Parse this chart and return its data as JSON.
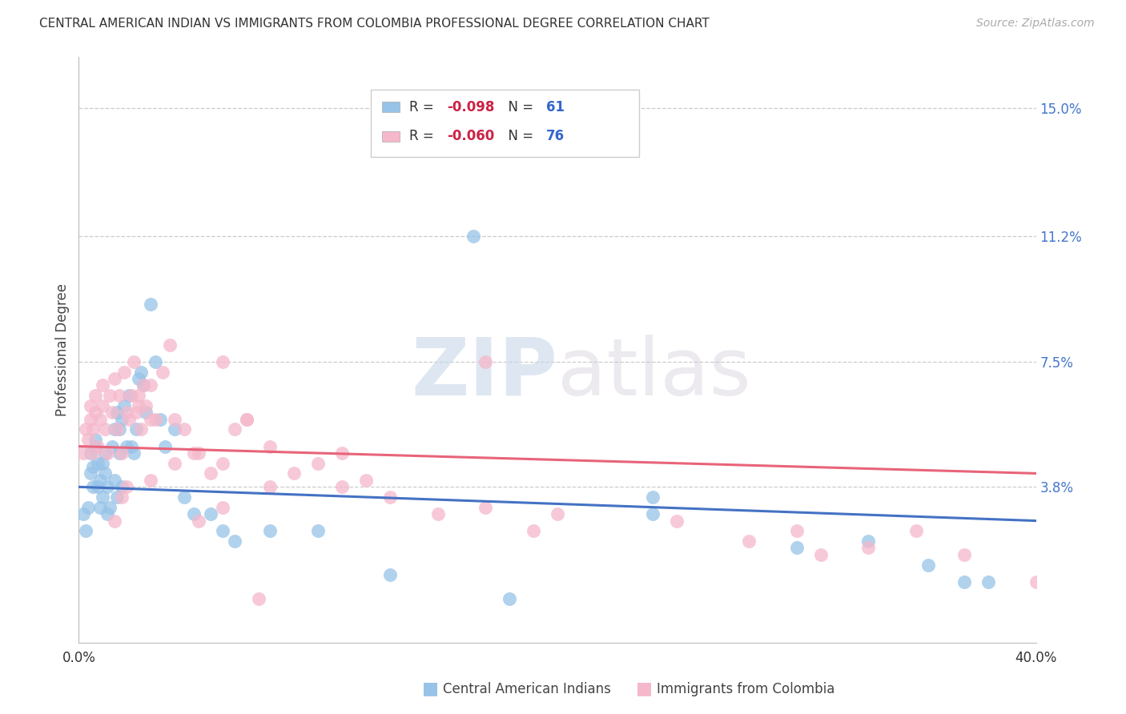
{
  "title": "CENTRAL AMERICAN INDIAN VS IMMIGRANTS FROM COLOMBIA PROFESSIONAL DEGREE CORRELATION CHART",
  "source": "Source: ZipAtlas.com",
  "ylabel": "Professional Degree",
  "right_yticks": [
    "15.0%",
    "11.2%",
    "7.5%",
    "3.8%"
  ],
  "right_ytick_vals": [
    0.15,
    0.112,
    0.075,
    0.038
  ],
  "legend_blue_r": "-0.098",
  "legend_blue_n": "61",
  "legend_pink_r": "-0.060",
  "legend_pink_n": "76",
  "watermark_zip": "ZIP",
  "watermark_atlas": "atlas",
  "blue_color": "#97c3e8",
  "pink_color": "#f5b8cb",
  "blue_line_color": "#4472c4",
  "pink_line_color": "#e8647a",
  "xmin": 0.0,
  "xmax": 0.4,
  "ymin": -0.008,
  "ymax": 0.165,
  "blue_scatter_x": [
    0.002,
    0.003,
    0.004,
    0.005,
    0.005,
    0.006,
    0.006,
    0.007,
    0.007,
    0.008,
    0.008,
    0.009,
    0.009,
    0.01,
    0.01,
    0.011,
    0.011,
    0.012,
    0.012,
    0.013,
    0.014,
    0.015,
    0.015,
    0.016,
    0.016,
    0.017,
    0.017,
    0.018,
    0.018,
    0.019,
    0.02,
    0.021,
    0.022,
    0.023,
    0.024,
    0.025,
    0.026,
    0.027,
    0.028,
    0.03,
    0.032,
    0.034,
    0.036,
    0.04,
    0.044,
    0.048,
    0.055,
    0.06,
    0.065,
    0.08,
    0.1,
    0.13,
    0.18,
    0.24,
    0.3,
    0.33,
    0.355,
    0.37,
    0.38,
    0.24,
    0.165
  ],
  "blue_scatter_y": [
    0.03,
    0.025,
    0.032,
    0.042,
    0.048,
    0.038,
    0.044,
    0.05,
    0.052,
    0.038,
    0.045,
    0.032,
    0.04,
    0.035,
    0.045,
    0.042,
    0.048,
    0.03,
    0.038,
    0.032,
    0.05,
    0.055,
    0.04,
    0.06,
    0.035,
    0.048,
    0.055,
    0.038,
    0.058,
    0.062,
    0.05,
    0.065,
    0.05,
    0.048,
    0.055,
    0.07,
    0.072,
    0.068,
    0.06,
    0.092,
    0.075,
    0.058,
    0.05,
    0.055,
    0.035,
    0.03,
    0.03,
    0.025,
    0.022,
    0.025,
    0.025,
    0.012,
    0.005,
    0.03,
    0.02,
    0.022,
    0.015,
    0.01,
    0.01,
    0.035,
    0.112
  ],
  "pink_scatter_x": [
    0.002,
    0.003,
    0.004,
    0.005,
    0.005,
    0.006,
    0.006,
    0.007,
    0.007,
    0.008,
    0.009,
    0.01,
    0.01,
    0.011,
    0.012,
    0.013,
    0.014,
    0.015,
    0.016,
    0.017,
    0.018,
    0.019,
    0.02,
    0.021,
    0.022,
    0.023,
    0.024,
    0.025,
    0.026,
    0.027,
    0.028,
    0.03,
    0.032,
    0.035,
    0.038,
    0.04,
    0.044,
    0.048,
    0.055,
    0.06,
    0.065,
    0.07,
    0.08,
    0.09,
    0.1,
    0.11,
    0.12,
    0.13,
    0.15,
    0.17,
    0.19,
    0.2,
    0.25,
    0.28,
    0.3,
    0.31,
    0.33,
    0.35,
    0.37,
    0.4,
    0.17,
    0.11,
    0.06,
    0.08,
    0.05,
    0.03,
    0.02,
    0.018,
    0.015,
    0.025,
    0.03,
    0.04,
    0.05,
    0.06,
    0.07,
    0.075
  ],
  "pink_scatter_y": [
    0.048,
    0.055,
    0.052,
    0.058,
    0.062,
    0.048,
    0.055,
    0.06,
    0.065,
    0.05,
    0.058,
    0.062,
    0.068,
    0.055,
    0.048,
    0.065,
    0.06,
    0.07,
    0.055,
    0.065,
    0.048,
    0.072,
    0.06,
    0.058,
    0.065,
    0.075,
    0.06,
    0.065,
    0.055,
    0.068,
    0.062,
    0.068,
    0.058,
    0.072,
    0.08,
    0.058,
    0.055,
    0.048,
    0.042,
    0.045,
    0.055,
    0.058,
    0.05,
    0.042,
    0.045,
    0.038,
    0.04,
    0.035,
    0.03,
    0.032,
    0.025,
    0.03,
    0.028,
    0.022,
    0.025,
    0.018,
    0.02,
    0.025,
    0.018,
    0.01,
    0.075,
    0.048,
    0.032,
    0.038,
    0.028,
    0.04,
    0.038,
    0.035,
    0.028,
    0.062,
    0.058,
    0.045,
    0.048,
    0.075,
    0.058,
    0.005
  ]
}
